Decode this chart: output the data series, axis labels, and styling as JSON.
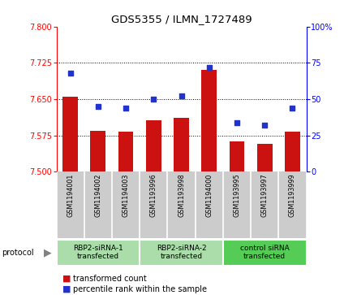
{
  "title": "GDS5355 / ILMN_1727489",
  "samples": [
    "GSM1194001",
    "GSM1194002",
    "GSM1194003",
    "GSM1193996",
    "GSM1193998",
    "GSM1194000",
    "GSM1193995",
    "GSM1193997",
    "GSM1193999"
  ],
  "transformed_count": [
    7.655,
    7.585,
    7.582,
    7.607,
    7.612,
    7.71,
    7.562,
    7.558,
    7.582
  ],
  "percentile_rank": [
    68,
    45,
    44,
    50,
    52,
    72,
    34,
    32,
    44
  ],
  "ylim_left": [
    7.5,
    7.8
  ],
  "ylim_right": [
    0,
    100
  ],
  "yticks_left": [
    7.5,
    7.575,
    7.65,
    7.725,
    7.8
  ],
  "yticks_right": [
    0,
    25,
    50,
    75,
    100
  ],
  "bar_color": "#cc1111",
  "scatter_color": "#2233cc",
  "hgrid_values": [
    7.575,
    7.65,
    7.725
  ],
  "protocol_groups": [
    {
      "label": "RBP2-siRNA-1\ntransfected",
      "start": 0,
      "end": 3,
      "color": "#aaddaa"
    },
    {
      "label": "RBP2-siRNA-2\ntransfected",
      "start": 3,
      "end": 6,
      "color": "#aaddaa"
    },
    {
      "label": "control siRNA\ntransfected",
      "start": 6,
      "end": 9,
      "color": "#55cc55"
    }
  ],
  "legend_bar_label": "transformed count",
  "legend_scatter_label": "percentile rank within the sample",
  "protocol_label": "protocol",
  "sample_bg": "#cccccc",
  "plot_bg": "#ffffff",
  "title_fontsize": 9.5
}
